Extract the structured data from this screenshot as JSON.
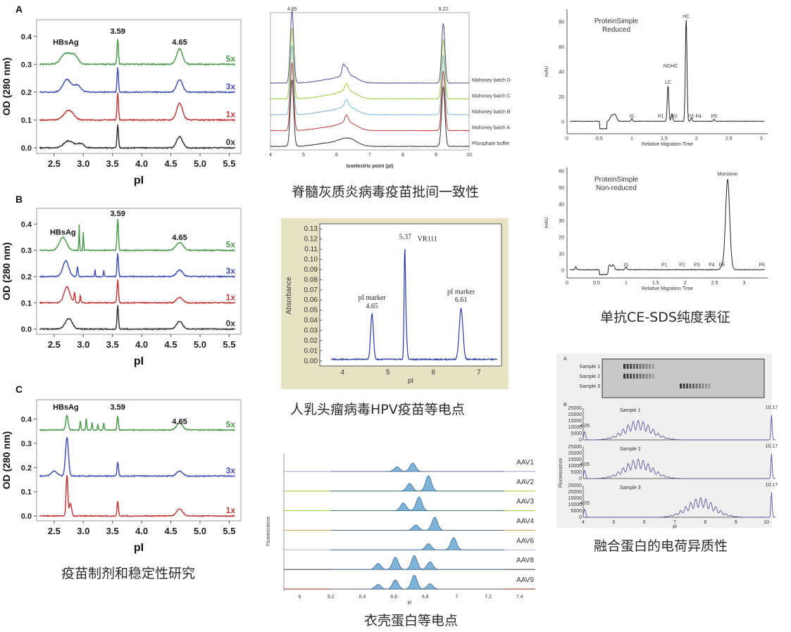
{
  "captions": {
    "panel1": "疫苗制剂和稳定性研究",
    "panel2": "脊髓灰质炎病毒疫苗批间一致性",
    "panel3": "人乳头瘤病毒HPV疫苗等电点",
    "panel4": "衣壳蛋白等电点",
    "panel5": "单抗CE-SDS纯度表征",
    "panel6": "融合蛋白的电荷异质性"
  },
  "colors": {
    "green": "#4e9a4e",
    "blue": "#4452b8",
    "red": "#c23c3c",
    "black": "#333333",
    "purple": "#5a4a9a",
    "lime": "#9acd3c",
    "teal": "#7ab8d0",
    "orange": "#e0a050",
    "lavender": "#a8a8e0",
    "darkred": "#8b2a1a"
  },
  "chart_data": [
    {
      "id": "A",
      "type": "line",
      "letter": "A",
      "xlabel": "pI",
      "ylabel": "OD (280 nm)",
      "xticks": [
        2.5,
        3.0,
        3.5,
        4.0,
        4.5,
        5.0,
        5.5
      ],
      "xlim": [
        2.2,
        5.7
      ],
      "yticks": [
        0.0,
        0.1,
        0.2,
        0.3,
        0.4
      ],
      "ylim": [
        -0.02,
        0.46
      ],
      "annotations": [
        {
          "x": 2.7,
          "y": 0.37,
          "text": "HBsAg"
        },
        {
          "x": 3.59,
          "y": 0.41,
          "text": "3.59"
        },
        {
          "x": 4.65,
          "y": 0.37,
          "text": "4.65"
        }
      ],
      "series": [
        {
          "name": "5x",
          "color": "green",
          "baseline": 0.3,
          "peaks": [
            [
              2.7,
              0.04,
              0.08
            ],
            [
              2.85,
              0.03,
              0.06
            ],
            [
              3.59,
              0.09,
              0.012
            ],
            [
              4.65,
              0.055,
              0.05
            ]
          ]
        },
        {
          "name": "3x",
          "color": "blue",
          "baseline": 0.2,
          "peaks": [
            [
              2.72,
              0.045,
              0.07
            ],
            [
              2.9,
              0.025,
              0.06
            ],
            [
              3.59,
              0.09,
              0.012
            ],
            [
              4.65,
              0.045,
              0.05
            ]
          ]
        },
        {
          "name": "1x",
          "color": "red",
          "baseline": 0.1,
          "peaks": [
            [
              2.75,
              0.035,
              0.08
            ],
            [
              3.59,
              0.1,
              0.012
            ],
            [
              4.65,
              0.06,
              0.05
            ]
          ]
        },
        {
          "name": "0x",
          "color": "black",
          "baseline": 0.0,
          "peaks": [
            [
              2.75,
              0.025,
              0.08
            ],
            [
              2.95,
              0.015,
              0.06
            ],
            [
              3.59,
              0.085,
              0.012
            ],
            [
              4.65,
              0.04,
              0.05
            ]
          ]
        }
      ]
    },
    {
      "id": "B",
      "type": "line",
      "letter": "B",
      "xlabel": "pI",
      "ylabel": "OD (280 nm)",
      "xticks": [
        2.5,
        3.0,
        3.5,
        4.0,
        4.5,
        5.0,
        5.5
      ],
      "xlim": [
        2.2,
        5.7
      ],
      "yticks": [
        0.0,
        0.1,
        0.2,
        0.3,
        0.4
      ],
      "ylim": [
        -0.02,
        0.46
      ],
      "annotations": [
        {
          "x": 2.65,
          "y": 0.36,
          "text": "HBsAg"
        },
        {
          "x": 3.59,
          "y": 0.43,
          "text": "3.59"
        },
        {
          "x": 4.65,
          "y": 0.34,
          "text": "4.65"
        }
      ],
      "series": [
        {
          "name": "5x",
          "color": "green",
          "baseline": 0.3,
          "peaks": [
            [
              2.65,
              0.05,
              0.06
            ],
            [
              2.93,
              0.1,
              0.006
            ],
            [
              3.0,
              0.07,
              0.006
            ],
            [
              3.59,
              0.12,
              0.012
            ],
            [
              4.65,
              0.03,
              0.06
            ]
          ]
        },
        {
          "name": "3x",
          "color": "blue",
          "baseline": 0.2,
          "peaks": [
            [
              2.7,
              0.06,
              0.05
            ],
            [
              2.9,
              0.04,
              0.01
            ],
            [
              3.2,
              0.03,
              0.006
            ],
            [
              3.35,
              0.025,
              0.006
            ],
            [
              3.59,
              0.09,
              0.012
            ],
            [
              4.65,
              0.025,
              0.05
            ]
          ]
        },
        {
          "name": "1x",
          "color": "red",
          "baseline": 0.1,
          "peaks": [
            [
              2.72,
              0.06,
              0.05
            ],
            [
              2.85,
              0.04,
              0.01
            ],
            [
              2.95,
              0.03,
              0.008
            ],
            [
              3.59,
              0.09,
              0.012
            ],
            [
              4.65,
              0.02,
              0.05
            ]
          ]
        },
        {
          "name": "0x",
          "color": "black",
          "baseline": 0.0,
          "peaks": [
            [
              2.75,
              0.04,
              0.06
            ],
            [
              3.59,
              0.09,
              0.012
            ],
            [
              4.65,
              0.03,
              0.05
            ]
          ]
        }
      ]
    },
    {
      "id": "C",
      "type": "line",
      "letter": "C",
      "xlabel": "pI",
      "ylabel": "OD (280 nm)",
      "xticks": [
        2.5,
        3.0,
        3.5,
        4.0,
        4.5,
        5.0,
        5.5
      ],
      "xlim": [
        2.2,
        5.7
      ],
      "yticks": [
        0.0,
        0.1,
        0.2,
        0.3,
        0.4
      ],
      "ylim": [
        -0.02,
        0.48
      ],
      "annotations": [
        {
          "x": 2.7,
          "y": 0.44,
          "text": "HBsAg"
        },
        {
          "x": 3.59,
          "y": 0.44,
          "text": "3.59"
        },
        {
          "x": 4.65,
          "y": 0.38,
          "text": "4.65"
        }
      ],
      "series": [
        {
          "name": "5x",
          "color": "green",
          "baseline": 0.355,
          "peaks": [
            [
              2.72,
              0.06,
              0.02
            ],
            [
              2.95,
              0.04,
              0.008
            ],
            [
              3.05,
              0.05,
              0.008
            ],
            [
              3.15,
              0.03,
              0.008
            ],
            [
              3.25,
              0.025,
              0.008
            ],
            [
              3.35,
              0.03,
              0.008
            ],
            [
              3.59,
              0.06,
              0.012
            ],
            [
              4.65,
              0.03,
              0.05
            ]
          ]
        },
        {
          "name": "3x",
          "color": "blue",
          "baseline": 0.165,
          "peaks": [
            [
              2.5,
              0.02,
              0.05
            ],
            [
              2.72,
              0.16,
              0.025
            ],
            [
              3.59,
              0.06,
              0.012
            ],
            [
              4.65,
              0.02,
              0.05
            ]
          ]
        },
        {
          "name": "1x",
          "color": "red",
          "baseline": 0.0,
          "peaks": [
            [
              2.72,
              0.17,
              0.015
            ],
            [
              2.78,
              0.05,
              0.02
            ],
            [
              3.59,
              0.06,
              0.012
            ],
            [
              4.65,
              0.03,
              0.05
            ]
          ]
        }
      ]
    },
    {
      "id": "polio",
      "type": "line",
      "xlabel": "Isoelectric point (pI)",
      "xticks": [
        4,
        5,
        6,
        7,
        8,
        9,
        10
      ],
      "xlim": [
        4,
        10
      ],
      "annotations": [
        {
          "x": 4.65,
          "text": "4.65"
        },
        {
          "x": 9.22,
          "text": "9.22"
        }
      ],
      "series": [
        {
          "name": "Mahoney batch D",
          "color": "purple",
          "offset": 4
        },
        {
          "name": "Mahoney batch C",
          "color": "lime",
          "offset": 3
        },
        {
          "name": "Mahoney batch B",
          "color": "teal",
          "offset": 2
        },
        {
          "name": "Mahoney batch A",
          "color": "red",
          "offset": 1
        },
        {
          "name": "Phosphate buffer",
          "color": "black",
          "offset": 0
        }
      ]
    },
    {
      "id": "hpv",
      "type": "line",
      "xlabel": "pI",
      "ylabel": "Absorbance",
      "xticks": [
        4,
        5,
        6,
        7
      ],
      "xlim": [
        3.5,
        7.5
      ],
      "yticks": [
        0.0,
        0.01,
        0.02,
        0.03,
        0.04,
        0.05,
        0.06,
        0.07,
        0.08,
        0.09,
        0.1,
        0.11,
        0.12,
        0.13
      ],
      "ylim": [
        -0.005,
        0.135
      ],
      "labels": {
        "vr": "VR111",
        "main": "5.37",
        "m1a": "pI marker",
        "m1b": "4.65",
        "m2a": "pI marker",
        "m2b": "6.61"
      },
      "peaks": [
        [
          4.65,
          0.045,
          0.03
        ],
        [
          5.37,
          0.1,
          0.015
        ],
        [
          5.4,
          0.03,
          0.02
        ],
        [
          6.61,
          0.05,
          0.04
        ]
      ]
    },
    {
      "id": "aav",
      "type": "area",
      "xlabel": "pI",
      "ylabel": "Fluorescence",
      "xticks": [
        6,
        6.2,
        6.4,
        6.6,
        6.8,
        7,
        7.2,
        7.4
      ],
      "xlim": [
        5.9,
        7.5
      ],
      "series": [
        {
          "name": "AAV1",
          "color": "lavender",
          "peaks": [
            [
              6.62,
              0.3
            ],
            [
              6.72,
              0.55
            ]
          ]
        },
        {
          "name": "AAV2",
          "color": "lime",
          "peaks": [
            [
              6.7,
              0.5
            ],
            [
              6.82,
              1.0
            ]
          ]
        },
        {
          "name": "AAV3",
          "color": "lime",
          "peaks": [
            [
              6.66,
              0.5
            ],
            [
              6.76,
              0.9
            ]
          ]
        },
        {
          "name": "AAV4",
          "color": "orange",
          "peaks": [
            [
              6.74,
              0.35
            ],
            [
              6.86,
              0.85
            ]
          ]
        },
        {
          "name": "AAV6",
          "color": "lavender",
          "peaks": [
            [
              6.82,
              0.4
            ],
            [
              6.98,
              0.8
            ]
          ]
        },
        {
          "name": "AAV8",
          "color": "black",
          "peaks": [
            [
              6.5,
              0.4
            ],
            [
              6.61,
              0.8
            ],
            [
              6.73,
              0.9
            ],
            [
              6.83,
              0.5
            ]
          ]
        },
        {
          "name": "AAV9",
          "color": "darkred",
          "peaks": [
            [
              6.5,
              0.3
            ],
            [
              6.61,
              0.6
            ],
            [
              6.73,
              0.9
            ],
            [
              6.83,
              0.35
            ]
          ]
        }
      ]
    },
    {
      "id": "ce-reduced",
      "type": "line",
      "title": [
        "ProteinSimple",
        "Reduced"
      ],
      "xlabel": "Relative Migration Time",
      "ylabel": "mAU",
      "xticks": [
        0,
        0.5,
        1,
        1.5,
        2,
        2.5,
        3
      ],
      "xlim": [
        0,
        3.1
      ],
      "yticks": [
        0,
        20,
        40,
        60,
        80
      ],
      "ylim": [
        -10,
        90
      ],
      "labels": [
        {
          "x": 1.0,
          "text": "IS"
        },
        {
          "x": 1.45,
          "text": "P1"
        },
        {
          "x": 1.66,
          "text": "P2"
        },
        {
          "x": 1.91,
          "text": "P3"
        },
        {
          "x": 2.03,
          "text": "P4"
        },
        {
          "x": 2.27,
          "text": "P5"
        },
        {
          "x": 1.56,
          "text": "LC",
          "y": 30
        },
        {
          "x": 1.6,
          "text": "NGHC",
          "y": 43
        },
        {
          "x": 1.84,
          "text": "HC",
          "y": 83
        }
      ]
    },
    {
      "id": "ce-nonreduced",
      "type": "line",
      "title": [
        "ProteinSimple",
        "Non-reduced"
      ],
      "xlabel": "Relative Migration Time",
      "ylabel": "mAU",
      "xticks": [
        0,
        0.5,
        1,
        1.5,
        2,
        2.5,
        3
      ],
      "xlim": [
        0,
        3.4
      ],
      "yticks": [
        0,
        10,
        20,
        30,
        40,
        50,
        60
      ],
      "ylim": [
        -5,
        62
      ],
      "labels": [
        {
          "x": 1.0,
          "text": "IS"
        },
        {
          "x": 1.65,
          "text": "P1"
        },
        {
          "x": 1.95,
          "text": "P2"
        },
        {
          "x": 2.2,
          "text": "P3"
        },
        {
          "x": 2.45,
          "text": "P4"
        },
        {
          "x": 2.62,
          "text": "P5"
        },
        {
          "x": 3.3,
          "text": "P6"
        },
        {
          "x": 2.72,
          "text": "Monomer",
          "y": 57
        }
      ]
    },
    {
      "id": "fusion",
      "type": "line",
      "xlabel": "pI",
      "ylabel": "Fluorescence",
      "xticks": [
        4,
        5,
        6,
        7,
        8,
        9,
        10
      ],
      "xlim": [
        4,
        10
      ],
      "markers": [
        "4.05",
        "10.17"
      ],
      "gel": {
        "letter": "A",
        "lanes": [
          "Sample 1",
          "Sample 2",
          "Sample 3"
        ]
      },
      "letter": "B",
      "samples": [
        {
          "name": "Sample 1",
          "center": 5.8,
          "yticks": [
            0,
            5000,
            10000,
            15000,
            20000,
            25000
          ]
        },
        {
          "name": "Sample 2",
          "center": 5.8,
          "yticks": [
            0,
            5000,
            10000,
            15000,
            20000,
            25000
          ]
        },
        {
          "name": "Sample 3",
          "center": 7.85,
          "yticks": [
            0,
            5000,
            10000,
            15000,
            20000,
            25000
          ]
        }
      ]
    }
  ]
}
